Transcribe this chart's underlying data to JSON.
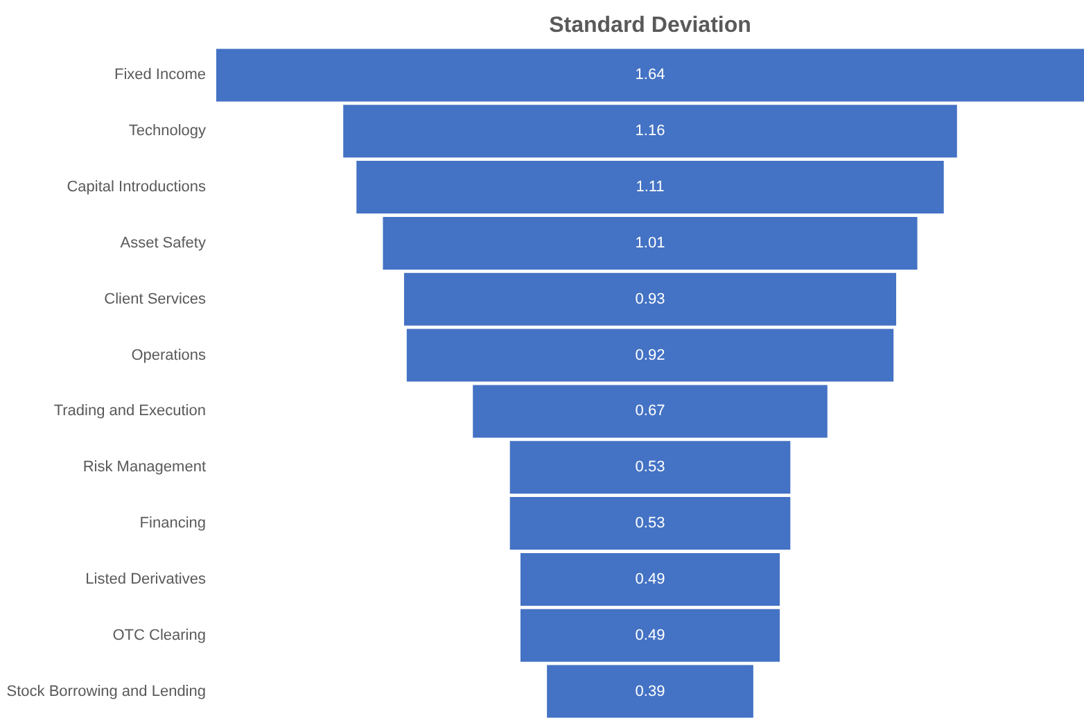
{
  "chart_data": {
    "type": "other",
    "title": "Standard Deviation",
    "categories": [
      "Fixed Income",
      "Technology",
      "Capital Introductions",
      "Asset Safety",
      "Client Services",
      "Operations",
      "Trading and Execution",
      "Risk Management",
      "Financing",
      "Listed Derivatives",
      "OTC Clearing",
      "Stock Borrowing and Lending"
    ],
    "values": [
      1.64,
      1.16,
      1.11,
      1.01,
      0.93,
      0.92,
      0.67,
      0.53,
      0.53,
      0.49,
      0.49,
      0.39
    ],
    "color": "#4472c4",
    "data_labels": true
  }
}
